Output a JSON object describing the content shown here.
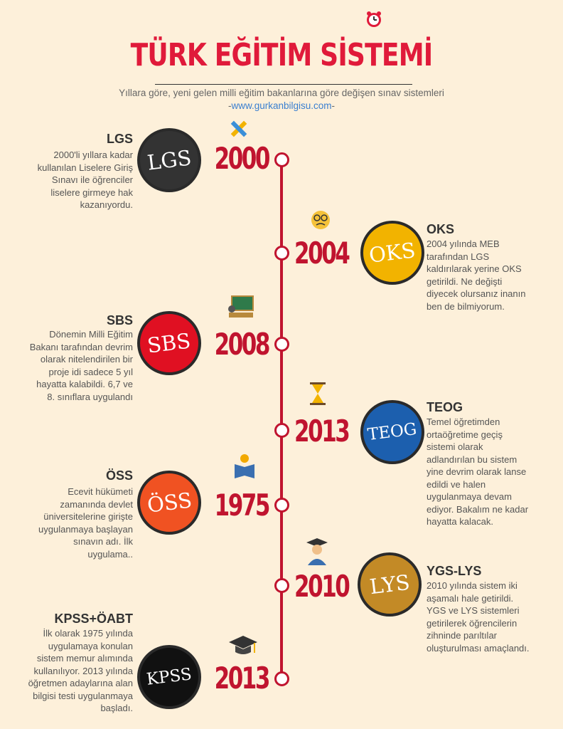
{
  "header": {
    "title": "TÜRK EĞİTİM SİSTEMİ",
    "subtitle": "Yıllara göre, yeni gelen milli eğitim bakanlarına göre değişen sınav sistemleri",
    "website_prefix": "-",
    "website": "www.gurkanbilgisu.com",
    "website_suffix": "-",
    "clock_icon": "alarm-clock-icon"
  },
  "colors": {
    "title": "#e01a3a",
    "year": "#c0142f",
    "line": "#c0142f",
    "lgs": "#333333",
    "oks": "#f2b300",
    "sbs": "#e01022",
    "teog": "#1c5fae",
    "oss": "#f05222",
    "lys": "#c38a26",
    "kpss": "#111111"
  },
  "events": [
    {
      "year": "2000",
      "badge": "LGS",
      "name": "LGS",
      "icon": "pencil-ruler-icon",
      "desc": "2000'li yıllara kadar kullanılan Liselere Giriş Sınavı ile öğrenciler liselere girmeye hak kazanıyordu."
    },
    {
      "year": "2004",
      "badge": "OKS",
      "name": "OKS",
      "icon": "confused-face-icon",
      "desc": "2004 yılında MEB tarafından LGS kaldırılarak yerine OKS getirildi. Ne değişti diyecek olursanız inanın ben de bilmiyorum."
    },
    {
      "year": "2008",
      "badge": "SBS",
      "name": "SBS",
      "icon": "teacher-board-icon",
      "desc": "Dönemin Milli Eğitim Bakanı tarafından devrim olarak nitelendirilen bir proje idi sadece 5 yıl hayatta kalabildi. 6,7 ve 8. sınıflara uygulandı"
    },
    {
      "year": "2013",
      "badge": "TEOG",
      "name": "TEOG",
      "icon": "hourglass-icon",
      "desc": "Temel öğretimden ortaöğretime geçiş sistemi olarak adlandırılan bu sistem yine devrim olarak lanse edildi ve halen uygulanmaya devam ediyor. Bakalım ne kadar hayatta kalacak."
    },
    {
      "year": "1975",
      "badge": "ÖSS",
      "name": "ÖSS",
      "icon": "reading-student-icon",
      "desc": "Ecevit hükümeti zamanında devlet üniversitelerine girişte uygulanmaya başlayan sınavın adı. İlk uygulama.."
    },
    {
      "year": "2010",
      "badge": "LYS",
      "name": "YGS-LYS",
      "icon": "graduate-student-icon",
      "desc": "2010 yılında sistem iki aşamalı hale getirildi. YGS ve LYS sistemleri getirilerek öğrencilerin zihninde parıltılar oluşturulması amaçlandı."
    },
    {
      "year": "2013",
      "badge": "KPSS",
      "name": "KPSS+ÖABT",
      "icon": "graduation-cap-icon",
      "desc": "İlk olarak 1975 yılında uygulamaya konulan sistem memur alımında kullanılıyor. 2013 yılında öğretmen adaylarına alan bilgisi testi uygulanmaya başladı."
    }
  ]
}
